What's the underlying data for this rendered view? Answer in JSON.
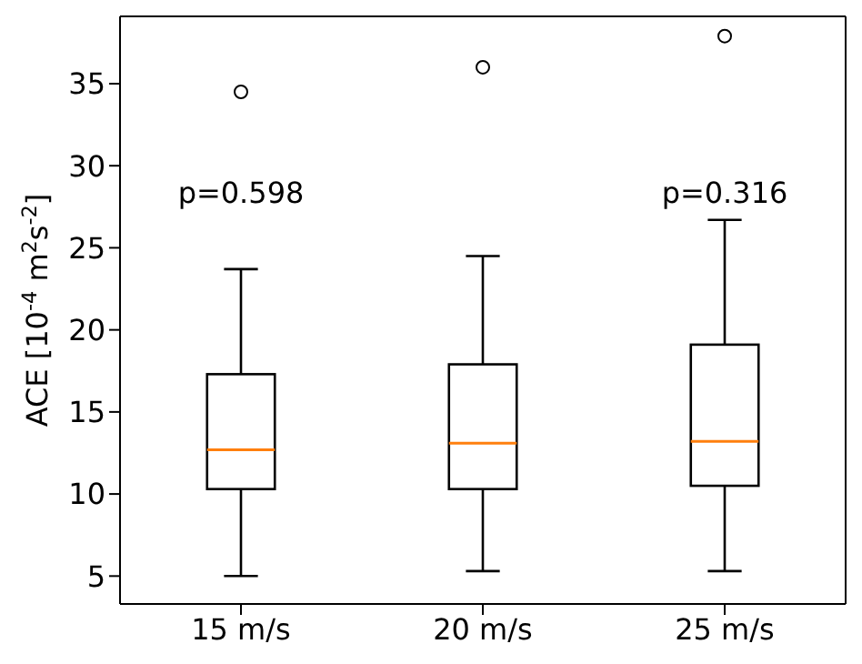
{
  "chart_data": {
    "type": "box",
    "categories": [
      "15 m/s",
      "20 m/s",
      "25 m/s"
    ],
    "ylabel": "ACE [10$^{-4}$ m$^{2}$s$^{-2}$]",
    "ylim": [
      3.3,
      39.1
    ],
    "yticks": [
      5,
      10,
      15,
      20,
      25,
      30,
      35
    ],
    "grid": false,
    "boxes": [
      {
        "low": 5.0,
        "q1": 10.3,
        "median": 12.7,
        "q3": 17.3,
        "high": 23.7,
        "outliers": [
          34.5
        ]
      },
      {
        "low": 5.3,
        "q1": 10.3,
        "median": 13.1,
        "q3": 17.9,
        "high": 24.5,
        "outliers": [
          36.0
        ]
      },
      {
        "low": 5.3,
        "q1": 10.5,
        "median": 13.2,
        "q3": 19.1,
        "high": 26.7,
        "outliers": [
          37.9
        ]
      }
    ],
    "annotations": [
      "p=0.598",
      "p=0.316"
    ]
  }
}
